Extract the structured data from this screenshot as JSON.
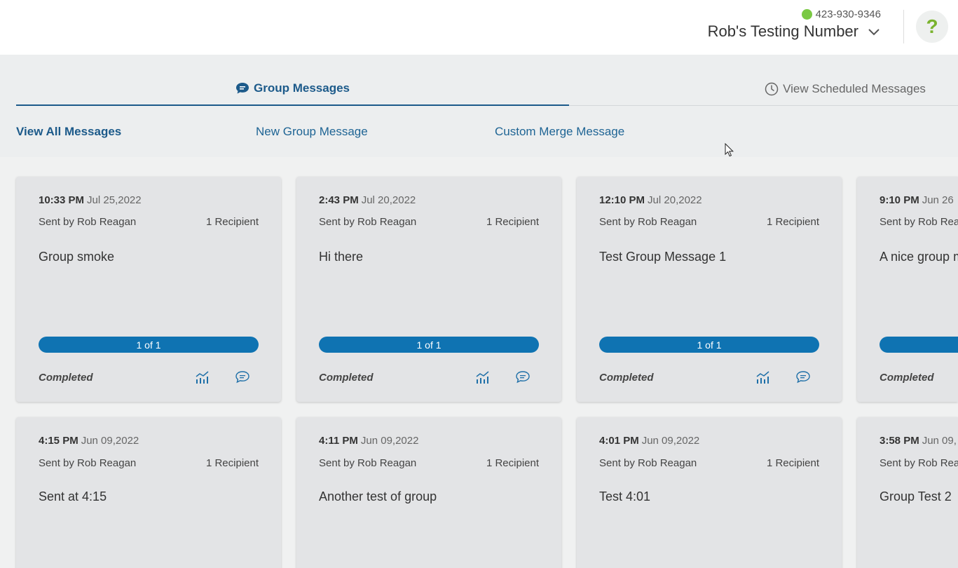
{
  "header": {
    "phone": "423-930-9346",
    "number_name": "Rob's Testing Number",
    "help_label": "?"
  },
  "tabs": [
    {
      "label": "Group Messages",
      "icon": "chat-bubble-icon",
      "active": true
    },
    {
      "label": "View Scheduled Messages",
      "icon": "clock-icon",
      "active": false
    }
  ],
  "subnav": [
    {
      "label": "View All Messages",
      "active": true
    },
    {
      "label": "New Group Message",
      "active": false
    },
    {
      "label": "Custom Merge Message",
      "active": false
    }
  ],
  "cards": [
    {
      "time": "10:33 PM",
      "date": "Jul 25,2022",
      "sender": "Sent by Rob Reagan",
      "recipients": "1 Recipient",
      "message": "Group smoke",
      "progress": "1 of 1",
      "progress_fraction": 1,
      "status": "Completed"
    },
    {
      "time": "2:43 PM",
      "date": "Jul 20,2022",
      "sender": "Sent by Rob Reagan",
      "recipients": "1 Recipient",
      "message": "Hi there",
      "progress": "1 of 1",
      "progress_fraction": 1,
      "status": "Completed"
    },
    {
      "time": "12:10 PM",
      "date": "Jul 20,2022",
      "sender": "Sent by Rob Reagan",
      "recipients": "1 Recipient",
      "message": "Test Group Message 1",
      "progress": "1 of 1",
      "progress_fraction": 1,
      "status": "Completed"
    },
    {
      "time": "9:10 PM",
      "date": "Jun 26",
      "sender": "Sent by Rob Rea",
      "recipients": "",
      "message": "A nice group m",
      "progress": "",
      "progress_fraction": 1,
      "status": "Completed"
    },
    {
      "time": "4:15 PM",
      "date": "Jun 09,2022",
      "sender": "Sent by Rob Reagan",
      "recipients": "1 Recipient",
      "message": "Sent at 4:15"
    },
    {
      "time": "4:11 PM",
      "date": "Jun 09,2022",
      "sender": "Sent by Rob Reagan",
      "recipients": "1 Recipient",
      "message": "Another test of group"
    },
    {
      "time": "4:01 PM",
      "date": "Jun 09,2022",
      "sender": "Sent by Rob Reagan",
      "recipients": "1 Recipient",
      "message": "Test 4:01"
    },
    {
      "time": "3:58 PM",
      "date": "Jun 09,",
      "sender": "Sent by Rob Rea",
      "recipients": "",
      "message": "Group Test 2"
    }
  ],
  "colors": {
    "accent": "#1c5a8a",
    "progress_bar": "#0f73b2",
    "status_dot": "#7ac943",
    "help_icon": "#7ab32e"
  }
}
